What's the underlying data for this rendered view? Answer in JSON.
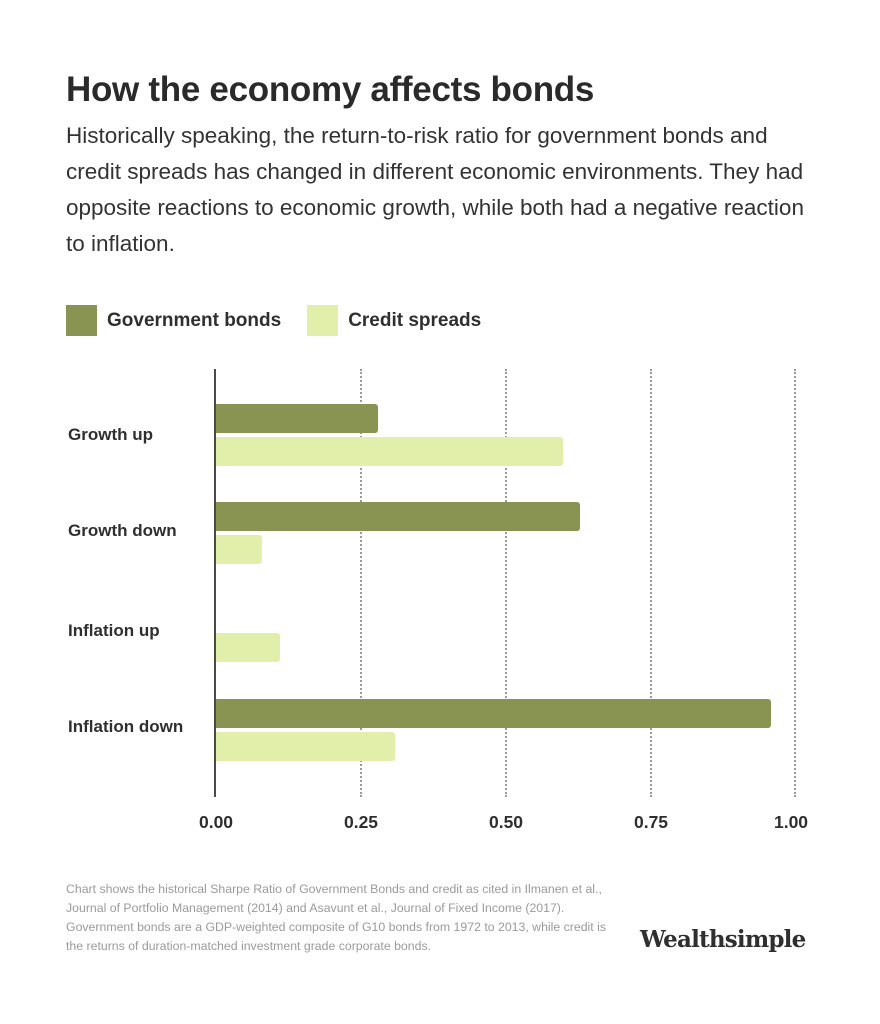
{
  "header": {
    "title": "How the economy affects bonds",
    "subtitle": "Historically speaking, the return-to-risk ratio for government bonds and credit spreads has changed in different economic environments. They had opposite reactions to economic growth, while both had a negative reaction to inflation."
  },
  "legend": [
    {
      "label": "Government bonds",
      "color": "#8a9452"
    },
    {
      "label": "Credit spreads",
      "color": "#e1efab"
    }
  ],
  "axis": {
    "ticks": [
      "0.00",
      "0.25",
      "0.50",
      "0.75",
      "1.00"
    ]
  },
  "footnote": "Chart shows the historical Sharpe Ratio of Government Bonds and credit as cited in Ilmanen et al., Journal of Portfolio Management (2014) and Asavunt et al., Journal of Fixed Income (2017). Government bonds are a GDP-weighted composite of G10 bonds from 1972 to 2013, while credit is the returns of duration-matched investment grade corporate bonds.",
  "brand": "Wealthsimple",
  "chart_data": {
    "type": "bar",
    "orientation": "horizontal",
    "title": "How the economy affects bonds",
    "categories": [
      "Growth up",
      "Growth down",
      "Inflation up",
      "Inflation down"
    ],
    "series": [
      {
        "name": "Government bonds",
        "color": "#8a9452",
        "values": [
          0.28,
          0.63,
          0.0,
          0.96
        ]
      },
      {
        "name": "Credit spreads",
        "color": "#e1efab",
        "values": [
          0.6,
          0.08,
          0.11,
          0.31
        ]
      }
    ],
    "xlabel": "",
    "ylabel": "",
    "xlim": [
      0,
      1.0
    ],
    "xticks": [
      0.0,
      0.25,
      0.5,
      0.75,
      1.0
    ],
    "grid": "vertical dotted",
    "legend_position": "top-left"
  }
}
